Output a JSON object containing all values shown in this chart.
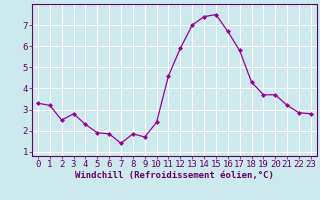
{
  "x": [
    0,
    1,
    2,
    3,
    4,
    5,
    6,
    7,
    8,
    9,
    10,
    11,
    12,
    13,
    14,
    15,
    16,
    17,
    18,
    19,
    20,
    21,
    22,
    23
  ],
  "y": [
    3.3,
    3.2,
    2.5,
    2.8,
    2.3,
    1.9,
    1.85,
    1.4,
    1.85,
    1.7,
    2.4,
    4.6,
    5.9,
    7.0,
    7.4,
    7.5,
    6.7,
    5.8,
    4.3,
    3.7,
    3.7,
    3.2,
    2.85,
    2.8
  ],
  "line_color": "#990099",
  "marker": "D",
  "marker_size": 2.0,
  "bg_color": "#cce9ee",
  "grid_color": "#ffffff",
  "xlabel": "Windchill (Refroidissement éolien,°C)",
  "xlabel_fontsize": 6.5,
  "ylim": [
    0.8,
    8.0
  ],
  "xlim": [
    -0.5,
    23.5
  ],
  "yticks": [
    1,
    2,
    3,
    4,
    5,
    6,
    7
  ],
  "xticks": [
    0,
    1,
    2,
    3,
    4,
    5,
    6,
    7,
    8,
    9,
    10,
    11,
    12,
    13,
    14,
    15,
    16,
    17,
    18,
    19,
    20,
    21,
    22,
    23
  ],
  "tick_fontsize": 6.5,
  "spine_color": "#660066",
  "axis_bg_color": "#cce9ee"
}
